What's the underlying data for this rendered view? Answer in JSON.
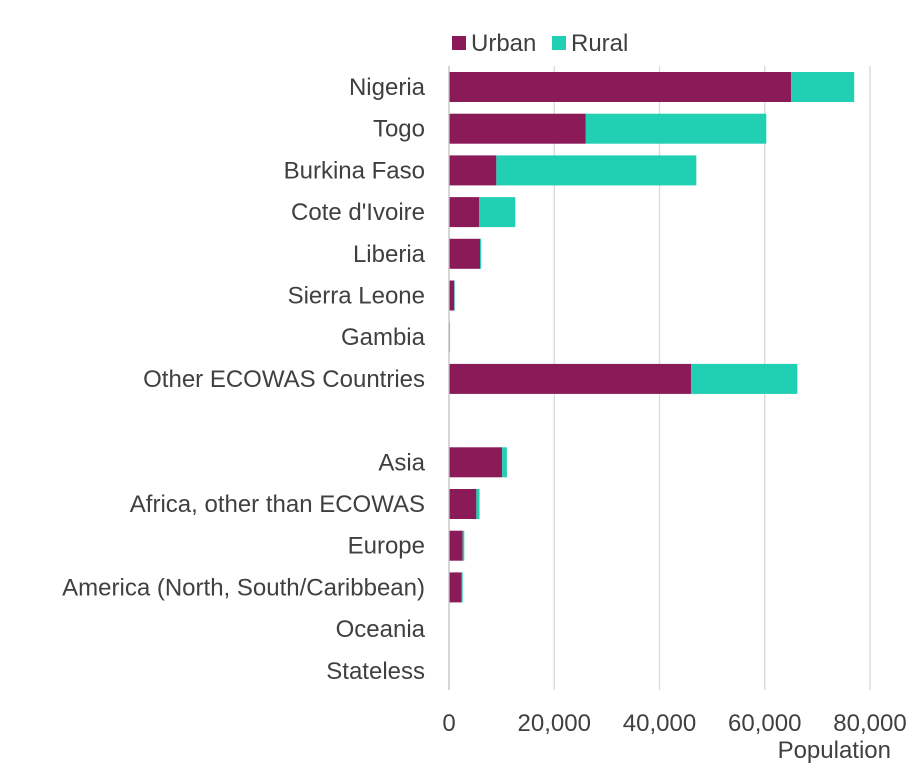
{
  "chart_data": {
    "type": "bar",
    "orientation": "horizontal",
    "stacked": true,
    "categories": [
      "Nigeria",
      "Togo",
      "Burkina Faso",
      "Cote d'Ivoire",
      "Liberia",
      "Sierra Leone",
      "Gambia",
      "Other ECOWAS Countries",
      "",
      "Asia",
      "Africa, other than ECOWAS",
      "Europe",
      "America (North, South/Caribbean)",
      "Oceania",
      "Stateless"
    ],
    "series": [
      {
        "name": "Urban",
        "color": "#8b1a58",
        "values": [
          65000,
          26000,
          9000,
          5700,
          5900,
          1000,
          100,
          46000,
          null,
          10100,
          5200,
          2600,
          2400,
          0,
          0
        ]
      },
      {
        "name": "Rural",
        "color": "#21d0b2",
        "values": [
          12000,
          34300,
          38000,
          6900,
          200,
          100,
          100,
          20200,
          null,
          900,
          600,
          300,
          200,
          0,
          0
        ]
      }
    ],
    "xlabel": "Population",
    "ylabel": "",
    "xlim": [
      0,
      80000
    ],
    "xticks": [
      0,
      20000,
      40000,
      60000,
      80000
    ],
    "xtick_labels": [
      "0",
      "20,000",
      "40,000",
      "60,000",
      "80,000"
    ],
    "grid": "vertical",
    "legend_position": "top"
  }
}
